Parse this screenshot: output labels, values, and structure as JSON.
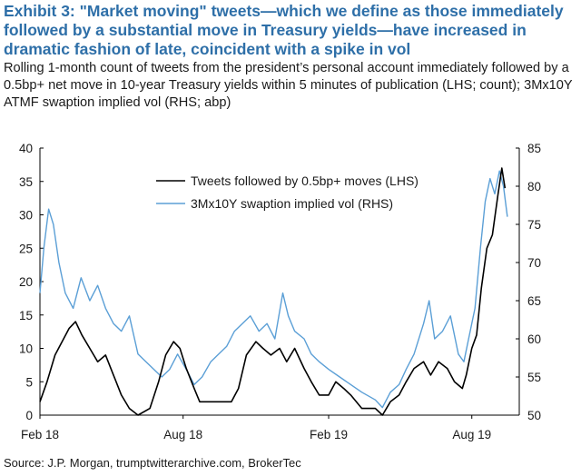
{
  "header": {
    "title": "Exhibit 3: \"Market moving\" tweets—which we define as those immediately followed by a substantial move in Treasury yields—have increased in dramatic fashion of late, coincident with a spike in vol",
    "subtitle": "Rolling 1-month count of tweets from the president’s personal account immediately followed by a 0.5bp+ net move in 10-year Treasury yields within 5 minutes of publication (LHS; count); 3Mx10Y ATMF swaption implied vol (RHS; abp)"
  },
  "footer": {
    "source": "Source: J.P. Morgan, trumptwitterarchive.com, BrokerTec"
  },
  "chart_data": {
    "type": "line",
    "x_range": [
      "2018-02-01",
      "2019-09-30"
    ],
    "x_ticks": [
      {
        "date": "2018-02-01",
        "label": "Feb 18"
      },
      {
        "date": "2018-08-01",
        "label": "Aug 18"
      },
      {
        "date": "2019-02-01",
        "label": "Feb 19"
      },
      {
        "date": "2019-08-01",
        "label": "Aug 19"
      }
    ],
    "y_left": {
      "min": 0,
      "max": 40,
      "ticks": [
        0,
        5,
        10,
        15,
        20,
        25,
        30,
        35,
        40
      ],
      "labels": [
        "0",
        "5",
        "10",
        "15",
        "20",
        "25",
        "30",
        "35",
        "40"
      ]
    },
    "y_right": {
      "min": 50,
      "max": 85,
      "ticks": [
        50,
        55,
        60,
        65,
        70,
        75,
        80,
        85
      ],
      "labels": [
        "50",
        "55",
        "60",
        "65",
        "70",
        "75",
        "80",
        "85"
      ]
    },
    "legend_position": "top-center",
    "grid": false,
    "series": [
      {
        "name": "Tweets followed by 0.5bp+ moves (LHS)",
        "axis": "left",
        "color": "#000000",
        "points": [
          [
            "2018-02-01",
            2
          ],
          [
            "2018-02-10",
            5
          ],
          [
            "2018-02-20",
            9
          ],
          [
            "2018-03-01",
            11
          ],
          [
            "2018-03-10",
            13
          ],
          [
            "2018-03-18",
            14
          ],
          [
            "2018-03-26",
            12
          ],
          [
            "2018-04-05",
            10
          ],
          [
            "2018-04-15",
            8
          ],
          [
            "2018-04-25",
            9
          ],
          [
            "2018-05-05",
            6
          ],
          [
            "2018-05-15",
            3
          ],
          [
            "2018-05-25",
            1
          ],
          [
            "2018-06-05",
            0
          ],
          [
            "2018-06-20",
            1
          ],
          [
            "2018-07-01",
            5
          ],
          [
            "2018-07-10",
            9
          ],
          [
            "2018-07-20",
            11
          ],
          [
            "2018-07-28",
            10
          ],
          [
            "2018-08-05",
            7
          ],
          [
            "2018-08-15",
            4
          ],
          [
            "2018-08-22",
            2
          ],
          [
            "2018-09-01",
            2
          ],
          [
            "2018-09-15",
            2
          ],
          [
            "2018-10-01",
            2
          ],
          [
            "2018-10-10",
            4
          ],
          [
            "2018-10-20",
            9
          ],
          [
            "2018-11-01",
            11
          ],
          [
            "2018-11-10",
            10
          ],
          [
            "2018-11-20",
            9
          ],
          [
            "2018-12-01",
            10
          ],
          [
            "2018-12-10",
            8
          ],
          [
            "2018-12-20",
            10
          ],
          [
            "2019-01-01",
            7
          ],
          [
            "2019-01-10",
            5
          ],
          [
            "2019-01-20",
            3
          ],
          [
            "2019-02-01",
            3
          ],
          [
            "2019-02-10",
            5
          ],
          [
            "2019-02-20",
            4
          ],
          [
            "2019-03-01",
            3
          ],
          [
            "2019-03-15",
            1
          ],
          [
            "2019-04-01",
            1
          ],
          [
            "2019-04-10",
            0
          ],
          [
            "2019-04-20",
            2
          ],
          [
            "2019-05-01",
            3
          ],
          [
            "2019-05-10",
            5
          ],
          [
            "2019-05-20",
            7
          ],
          [
            "2019-06-01",
            8
          ],
          [
            "2019-06-10",
            6
          ],
          [
            "2019-06-20",
            8
          ],
          [
            "2019-07-01",
            7
          ],
          [
            "2019-07-10",
            5
          ],
          [
            "2019-07-20",
            4
          ],
          [
            "2019-07-25",
            6
          ],
          [
            "2019-08-01",
            10
          ],
          [
            "2019-08-07",
            12
          ],
          [
            "2019-08-13",
            19
          ],
          [
            "2019-08-20",
            25
          ],
          [
            "2019-08-27",
            27
          ],
          [
            "2019-09-03",
            33
          ],
          [
            "2019-09-08",
            37
          ],
          [
            "2019-09-12",
            34
          ]
        ]
      },
      {
        "name": "3Mx10Y swaption implied vol (RHS)",
        "axis": "right",
        "color": "#5b9fd6",
        "points": [
          [
            "2018-02-01",
            66
          ],
          [
            "2018-02-06",
            72
          ],
          [
            "2018-02-12",
            77
          ],
          [
            "2018-02-18",
            75
          ],
          [
            "2018-02-25",
            70
          ],
          [
            "2018-03-05",
            66
          ],
          [
            "2018-03-15",
            64
          ],
          [
            "2018-03-25",
            68
          ],
          [
            "2018-04-05",
            65
          ],
          [
            "2018-04-15",
            67
          ],
          [
            "2018-04-25",
            64
          ],
          [
            "2018-05-05",
            62
          ],
          [
            "2018-05-15",
            61
          ],
          [
            "2018-05-25",
            63
          ],
          [
            "2018-06-05",
            58
          ],
          [
            "2018-06-15",
            57
          ],
          [
            "2018-06-25",
            56
          ],
          [
            "2018-07-05",
            55
          ],
          [
            "2018-07-15",
            56
          ],
          [
            "2018-07-25",
            58
          ],
          [
            "2018-08-05",
            56
          ],
          [
            "2018-08-15",
            54
          ],
          [
            "2018-08-25",
            55
          ],
          [
            "2018-09-05",
            57
          ],
          [
            "2018-09-15",
            58
          ],
          [
            "2018-09-25",
            59
          ],
          [
            "2018-10-05",
            61
          ],
          [
            "2018-10-15",
            62
          ],
          [
            "2018-10-25",
            63
          ],
          [
            "2018-11-05",
            61
          ],
          [
            "2018-11-15",
            62
          ],
          [
            "2018-11-25",
            60
          ],
          [
            "2018-12-05",
            66
          ],
          [
            "2018-12-12",
            63
          ],
          [
            "2018-12-20",
            61
          ],
          [
            "2019-01-01",
            60
          ],
          [
            "2019-01-10",
            58
          ],
          [
            "2019-01-20",
            57
          ],
          [
            "2019-02-01",
            56
          ],
          [
            "2019-02-15",
            55
          ],
          [
            "2019-03-01",
            54
          ],
          [
            "2019-03-15",
            53
          ],
          [
            "2019-04-01",
            52
          ],
          [
            "2019-04-10",
            51
          ],
          [
            "2019-04-20",
            53
          ],
          [
            "2019-05-01",
            54
          ],
          [
            "2019-05-10",
            56
          ],
          [
            "2019-05-20",
            58
          ],
          [
            "2019-06-01",
            62
          ],
          [
            "2019-06-08",
            65
          ],
          [
            "2019-06-15",
            60
          ],
          [
            "2019-06-25",
            61
          ],
          [
            "2019-07-05",
            63
          ],
          [
            "2019-07-15",
            58
          ],
          [
            "2019-07-22",
            57
          ],
          [
            "2019-07-28",
            60
          ],
          [
            "2019-08-05",
            64
          ],
          [
            "2019-08-12",
            72
          ],
          [
            "2019-08-18",
            78
          ],
          [
            "2019-08-24",
            81
          ],
          [
            "2019-08-30",
            79
          ],
          [
            "2019-09-05",
            82
          ],
          [
            "2019-09-10",
            80
          ],
          [
            "2019-09-15",
            76
          ]
        ]
      }
    ]
  }
}
